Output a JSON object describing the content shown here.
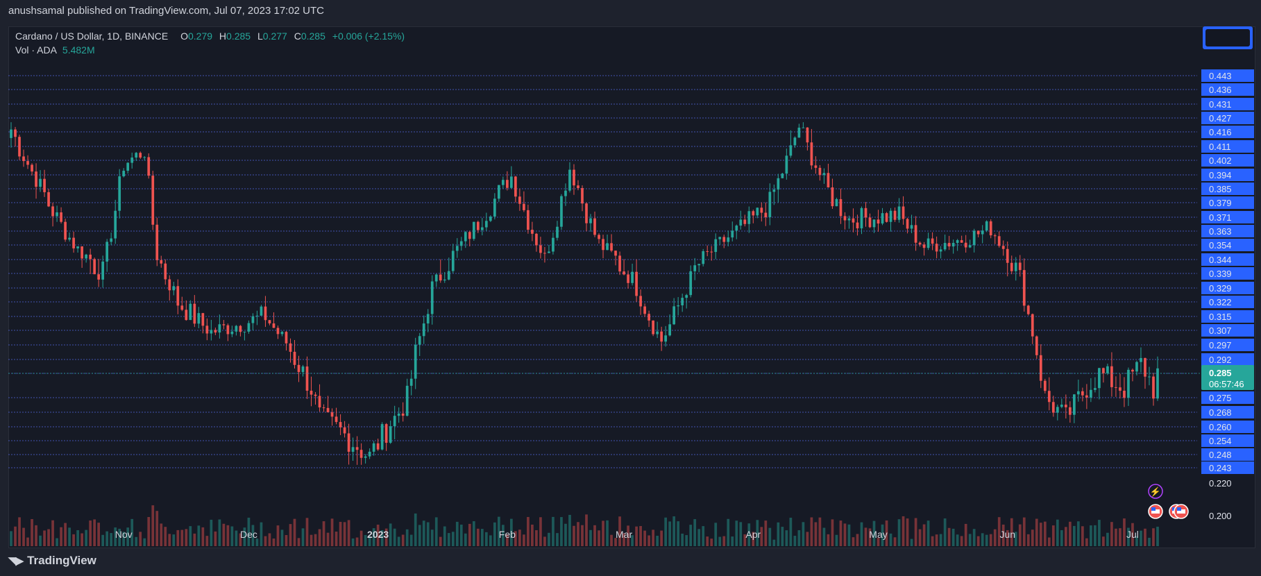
{
  "header": {
    "published_text": "anushsamal published on TradingView.com, Jul 07, 2023 17:02 UTC"
  },
  "legend": {
    "symbol": "Cardano / US Dollar, 1D, BINANCE",
    "o_label": "O",
    "o": "0.279",
    "h_label": "H",
    "h": "0.285",
    "l_label": "L",
    "l": "0.277",
    "c_label": "C",
    "c": "0.285",
    "change": "+0.006 (+2.15%)",
    "vol_label": "Vol · ADA",
    "vol_value": "5.482M"
  },
  "price_axis": {
    "ticks": [
      "0.443",
      "0.436",
      "0.431",
      "0.427",
      "0.416",
      "0.411",
      "0.402",
      "0.394",
      "0.385",
      "0.379",
      "0.371",
      "0.363",
      "0.354",
      "0.344",
      "0.339",
      "0.329",
      "0.322",
      "0.315",
      "0.307",
      "0.297",
      "0.292",
      "0.285",
      "0.275",
      "0.268",
      "0.260",
      "0.254",
      "0.248",
      "0.243",
      "0.220",
      "0.200"
    ],
    "highlighted": [
      "0.443",
      "0.436",
      "0.431",
      "0.427",
      "0.416",
      "0.411",
      "0.402",
      "0.394",
      "0.385",
      "0.379",
      "0.371",
      "0.363",
      "0.354",
      "0.344",
      "0.339",
      "0.329",
      "0.322",
      "0.315",
      "0.307",
      "0.297",
      "0.292",
      "0.285",
      "0.275",
      "0.268",
      "0.260",
      "0.254",
      "0.248",
      "0.243"
    ],
    "current_price": "0.285",
    "countdown": "06:57:46"
  },
  "time_axis": {
    "labels": [
      "Nov",
      "Dec",
      "2023",
      "Feb",
      "Mar",
      "Apr",
      "May",
      "Jun",
      "Jul"
    ]
  },
  "colors": {
    "up": "#26a69a",
    "down": "#ef5350",
    "axis_blue": "#2962ff",
    "line_blue": "#5b74ff",
    "background": "#161a25"
  },
  "icons": [
    "flash-icon",
    "us-flag-icon",
    "us-flag-icon"
  ],
  "footer": {
    "brand": "TradingView"
  },
  "chart_data": {
    "type": "candlestick",
    "title": "Cardano / US Dollar, 1D, BINANCE",
    "ylim": [
      0.2,
      0.45
    ],
    "x_range": [
      "2022-10-05",
      "2023-07-07"
    ],
    "grid": false,
    "key_points": [
      {
        "date": "2022-10-05",
        "close": 0.418
      },
      {
        "date": "2022-10-14",
        "close": 0.378
      },
      {
        "date": "2022-10-21",
        "close": 0.351
      },
      {
        "date": "2022-10-27",
        "close": 0.338
      },
      {
        "date": "2022-11-01",
        "close": 0.4
      },
      {
        "date": "2022-11-06",
        "close": 0.408
      },
      {
        "date": "2022-11-09",
        "close": 0.347
      },
      {
        "date": "2022-11-14",
        "close": 0.322
      },
      {
        "date": "2022-11-22",
        "close": 0.306
      },
      {
        "date": "2022-12-05",
        "close": 0.315
      },
      {
        "date": "2022-12-16",
        "close": 0.279
      },
      {
        "date": "2022-12-18",
        "close": 0.266
      },
      {
        "date": "2022-12-30",
        "close": 0.247
      },
      {
        "date": "2023-01-08",
        "close": 0.274
      },
      {
        "date": "2023-01-14",
        "close": 0.33
      },
      {
        "date": "2023-01-22",
        "close": 0.358
      },
      {
        "date": "2023-02-02",
        "close": 0.393
      },
      {
        "date": "2023-02-10",
        "close": 0.345
      },
      {
        "date": "2023-02-16",
        "close": 0.398
      },
      {
        "date": "2023-02-23",
        "close": 0.355
      },
      {
        "date": "2023-03-03",
        "close": 0.335
      },
      {
        "date": "2023-03-10",
        "close": 0.3
      },
      {
        "date": "2023-03-18",
        "close": 0.34
      },
      {
        "date": "2023-03-25",
        "close": 0.357
      },
      {
        "date": "2023-04-05",
        "close": 0.378
      },
      {
        "date": "2023-04-12",
        "close": 0.42
      },
      {
        "date": "2023-04-19",
        "close": 0.384
      },
      {
        "date": "2023-04-24",
        "close": 0.37
      },
      {
        "date": "2023-05-06",
        "close": 0.372
      },
      {
        "date": "2023-05-12",
        "close": 0.353
      },
      {
        "date": "2023-05-22",
        "close": 0.358
      },
      {
        "date": "2023-05-28",
        "close": 0.365
      },
      {
        "date": "2023-06-04",
        "close": 0.336
      },
      {
        "date": "2023-06-10",
        "close": 0.275
      },
      {
        "date": "2023-06-15",
        "close": 0.265
      },
      {
        "date": "2023-06-20",
        "close": 0.28
      },
      {
        "date": "2023-06-23",
        "close": 0.285
      },
      {
        "date": "2023-06-29",
        "close": 0.279
      },
      {
        "date": "2023-07-03",
        "close": 0.29
      },
      {
        "date": "2023-07-06",
        "close": 0.279
      },
      {
        "date": "2023-07-07",
        "close": 0.285
      }
    ]
  }
}
